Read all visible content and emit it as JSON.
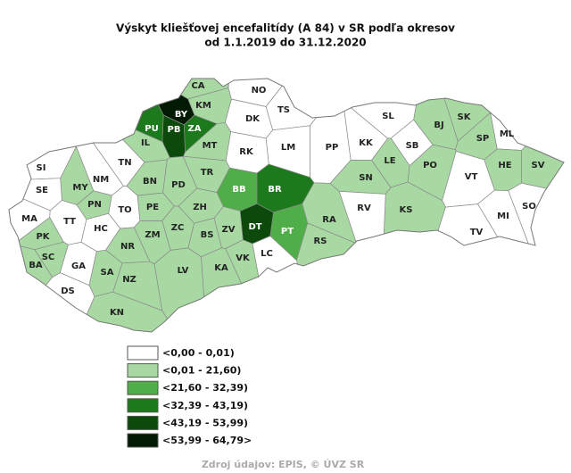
{
  "header": {
    "title_line1": "Výskyt kliešťovej encefalitídy (A 84) v SR podľa okresov",
    "title_line2": "od 1.1.2019 do 31.12.2020"
  },
  "legend": [
    {
      "label": "<0,00 - 0,01)",
      "color": "#ffffff"
    },
    {
      "label": "<0,01 - 21,60)",
      "color": "#a9d9a3"
    },
    {
      "label": "<21,60 - 32,39)",
      "color": "#4fae48"
    },
    {
      "label": "<32,39 - 43,19)",
      "color": "#1c7a1c"
    },
    {
      "label": "<43,19 - 53,99)",
      "color": "#0b4a0b"
    },
    {
      "label": "<53,99 - 64,79>",
      "color": "#021a02"
    }
  ],
  "districts": [
    {
      "label": "CA",
      "class": 1
    },
    {
      "label": "KM",
      "class": 1
    },
    {
      "label": "NO",
      "class": 0
    },
    {
      "label": "BY",
      "class": 5
    },
    {
      "label": "PB",
      "class": 4
    },
    {
      "label": "ZA",
      "class": 3
    },
    {
      "label": "PU",
      "class": 3
    },
    {
      "label": "TS",
      "class": 0
    },
    {
      "label": "DK",
      "class": 0
    },
    {
      "label": "IL",
      "class": 1
    },
    {
      "label": "MT",
      "class": 1
    },
    {
      "label": "RK",
      "class": 0
    },
    {
      "label": "LM",
      "class": 0
    },
    {
      "label": "PP",
      "class": 0
    },
    {
      "label": "SL",
      "class": 0
    },
    {
      "label": "KK",
      "class": 0
    },
    {
      "label": "SB",
      "class": 0
    },
    {
      "label": "BJ",
      "class": 1
    },
    {
      "label": "SK",
      "class": 1
    },
    {
      "label": "ML",
      "class": 0
    },
    {
      "label": "SP",
      "class": 1
    },
    {
      "label": "SI",
      "class": 0
    },
    {
      "label": "TN",
      "class": 0
    },
    {
      "label": "NM",
      "class": 0
    },
    {
      "label": "MY",
      "class": 1
    },
    {
      "label": "BN",
      "class": 1
    },
    {
      "label": "PD",
      "class": 1
    },
    {
      "label": "TR",
      "class": 1
    },
    {
      "label": "BB",
      "class": 2
    },
    {
      "label": "BR",
      "class": 3
    },
    {
      "label": "SN",
      "class": 1
    },
    {
      "label": "LE",
      "class": 1
    },
    {
      "label": "PO",
      "class": 1
    },
    {
      "label": "HE",
      "class": 1
    },
    {
      "label": "SV",
      "class": 1
    },
    {
      "label": "VT",
      "class": 0
    },
    {
      "label": "KS",
      "class": 1
    },
    {
      "label": "RV",
      "class": 0
    },
    {
      "label": "SE",
      "class": 0
    },
    {
      "label": "PN",
      "class": 1
    },
    {
      "label": "TO",
      "class": 0
    },
    {
      "label": "PE",
      "class": 1
    },
    {
      "label": "ZH",
      "class": 1
    },
    {
      "label": "MA",
      "class": 0
    },
    {
      "label": "TT",
      "class": 0
    },
    {
      "label": "HC",
      "class": 0
    },
    {
      "label": "DT",
      "class": 4
    },
    {
      "label": "PT",
      "class": 2
    },
    {
      "label": "RA",
      "class": 1
    },
    {
      "label": "MI",
      "class": 0
    },
    {
      "label": "SO",
      "class": 0
    },
    {
      "label": "TV",
      "class": 0
    },
    {
      "label": "PK",
      "class": 1
    },
    {
      "label": "ZC",
      "class": 1
    },
    {
      "label": "ZM",
      "class": 1
    },
    {
      "label": "BS",
      "class": 1
    },
    {
      "label": "ZV",
      "class": 1
    },
    {
      "label": "RS",
      "class": 1
    },
    {
      "label": "SC",
      "class": 1
    },
    {
      "label": "BA",
      "class": 1
    },
    {
      "label": "NR",
      "class": 1
    },
    {
      "label": "LV",
      "class": 1
    },
    {
      "label": "VK",
      "class": 1
    },
    {
      "label": "KA",
      "class": 1
    },
    {
      "label": "LC",
      "class": 0
    },
    {
      "label": "GA",
      "class": 0
    },
    {
      "label": "SA",
      "class": 1
    },
    {
      "label": "NZ",
      "class": 1
    },
    {
      "label": "DS",
      "class": 0
    },
    {
      "label": "KN",
      "class": 1
    }
  ],
  "source": "Zdroj údajov: EPIS, © ÚVZ SR"
}
